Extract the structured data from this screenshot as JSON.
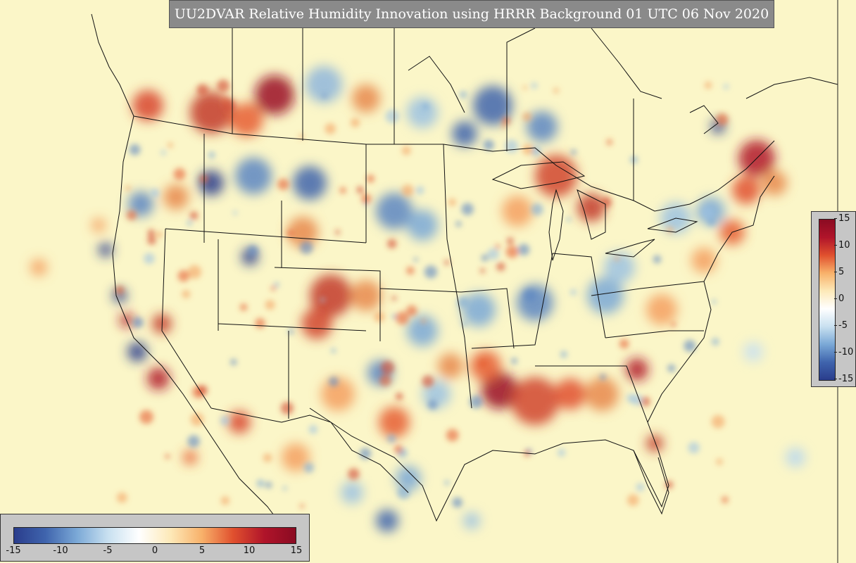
{
  "title": "UU2DVAR Relative Humidity Innovation using HRRR Background 01 UTC 06 Nov 2020",
  "colorbar": {
    "min": -15,
    "max": 15,
    "ticks_vertical": [
      "15",
      "10",
      "5",
      "0",
      "-5",
      "-10",
      "-15"
    ],
    "ticks_horizontal": [
      "-15",
      "-10",
      "-5",
      "0",
      "5",
      "10",
      "15"
    ],
    "colors": [
      "#2a3d8c",
      "#3f64ad",
      "#7aa8d6",
      "#c8e0f0",
      "#ffffff",
      "#fde9b8",
      "#f8b16a",
      "#e0502e",
      "#b0142a",
      "#8a0b22"
    ]
  },
  "map": {
    "background_color": "#fbf6c8",
    "border_color": "#000000"
  }
}
